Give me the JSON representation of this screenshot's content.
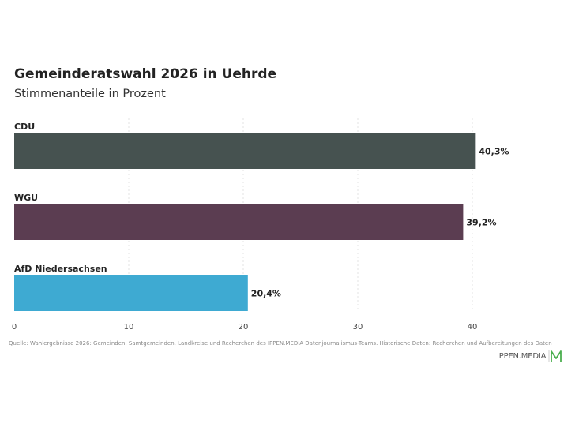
{
  "header": {
    "title": "Gemeinderatswahl 2026 in Uehrde",
    "subtitle": "Stimmenanteile in Prozent"
  },
  "chart_data": {
    "type": "bar",
    "orientation": "horizontal",
    "categories": [
      "CDU",
      "WGU",
      "AfD Niedersachsen"
    ],
    "values": [
      40.3,
      39.2,
      20.4
    ],
    "value_labels": [
      "40,3%",
      "39,2%",
      "20,4%"
    ],
    "colors": [
      "#465250",
      "#5b3d51",
      "#3eaad2"
    ],
    "xlim": [
      0,
      40
    ],
    "xticks": [
      0,
      10,
      20,
      30,
      40
    ],
    "grid": "vertical dotted",
    "legend": "none"
  },
  "footer": {
    "source": "Quelle: Wahlergebnisse 2026: Gemeinden, Samtgemeinden, Landkreise und Recherchen des IPPEN.MEDIA Datenjournalismus-Teams. Historische Daten: Recherchen und Aufbereitungen des Daten",
    "logo_text": "IPPEN.MEDIA",
    "logo_color": "#4caf50"
  }
}
